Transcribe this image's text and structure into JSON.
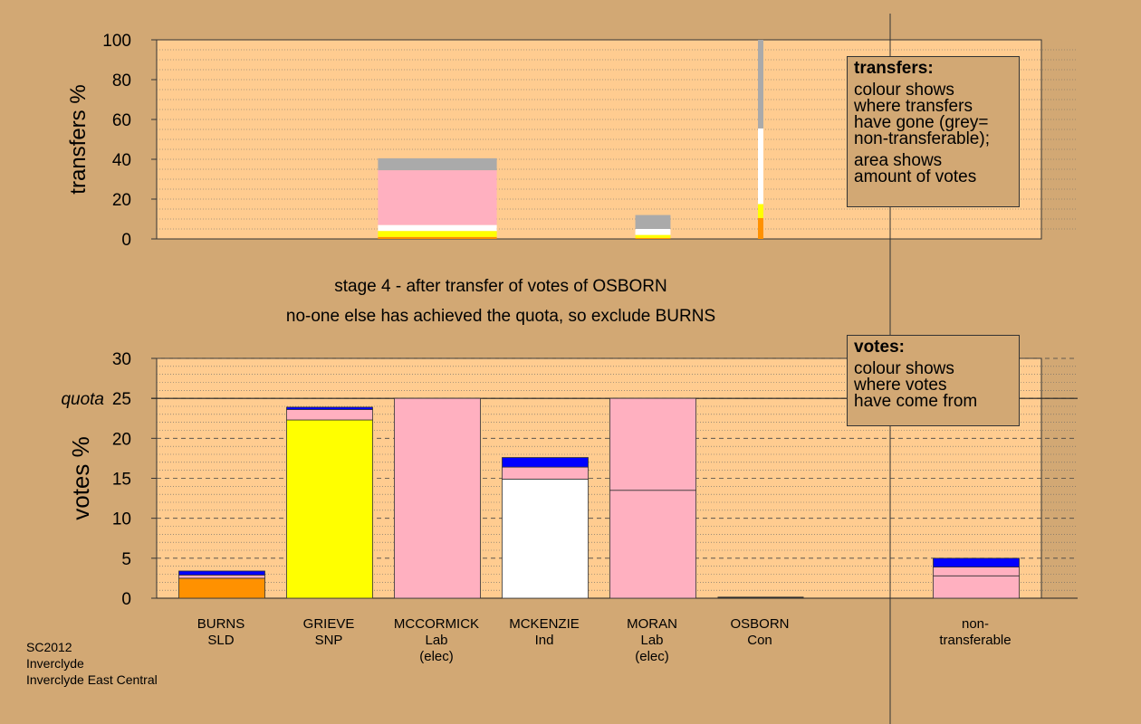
{
  "colors": {
    "background": "#D2A874",
    "plot_bg": "#FFCC90",
    "SLD": "#FF9100",
    "SNP": "#FFFF00",
    "Lab": "#FFB0C0",
    "Ind": "#FFFFFF",
    "Con": "#0000FF",
    "nontransferable": "#AAAAAA"
  },
  "stage_text": {
    "line1": "stage 4 - after transfer of votes of OSBORN",
    "line2": "no-one else has achieved the quota, so exclude BURNS"
  },
  "legend_transfers": {
    "title": "transfers:",
    "lines1": [
      "colour shows",
      "where transfers",
      "have gone (grey=",
      "non-transferable);"
    ],
    "lines2": [
      "area shows",
      "amount of votes"
    ]
  },
  "legend_votes": {
    "title": "votes:",
    "lines": [
      "colour shows",
      "where votes",
      "have come from"
    ]
  },
  "footer": {
    "line1": "SC2012",
    "line2": "Inverclyde",
    "line3": "Inverclyde East Central"
  },
  "candidates": [
    {
      "name": "BURNS",
      "party": "SLD",
      "note": ""
    },
    {
      "name": "GRIEVE",
      "party": "SNP",
      "note": ""
    },
    {
      "name": "MCCORMICK",
      "party": "Lab",
      "note": "(elec)"
    },
    {
      "name": "MCKENZIE",
      "party": "Ind",
      "note": ""
    },
    {
      "name": "MORAN",
      "party": "Lab",
      "note": "(elec)"
    },
    {
      "name": "OSBORN",
      "party": "Con",
      "note": ""
    },
    {
      "name": "non-",
      "party": "transferable",
      "note": ""
    }
  ],
  "chart_data": [
    {
      "type": "bar",
      "ylabel": "transfers %",
      "ylim": [
        0,
        100
      ],
      "yticks": [
        0,
        20,
        40,
        60,
        80,
        100
      ],
      "bars": [
        {
          "candidate": "MCCORMICK",
          "width_pct": 40.5,
          "segments": [
            {
              "source": "SLD",
              "value": 1
            },
            {
              "source": "SNP",
              "value": 3
            },
            {
              "source": "Ind",
              "value": 3
            },
            {
              "source": "Lab",
              "value": 27.5
            },
            {
              "source": "nontransferable",
              "value": 6
            }
          ]
        },
        {
          "candidate": "MORAN",
          "width_pct": 12,
          "segments": [
            {
              "source": "SLD",
              "value": 0.5
            },
            {
              "source": "SNP",
              "value": 1.5
            },
            {
              "source": "Ind",
              "value": 3
            },
            {
              "source": "nontransferable",
              "value": 7
            }
          ]
        },
        {
          "candidate": "OSBORN",
          "width_pct": 1.2,
          "segments": [
            {
              "source": "SLD",
              "value": 10.5
            },
            {
              "source": "SNP",
              "value": 7
            },
            {
              "source": "Ind",
              "value": 38
            },
            {
              "source": "nontransferable",
              "value": 44.5
            }
          ]
        }
      ]
    },
    {
      "type": "bar",
      "ylabel": "votes %",
      "ylim": [
        0,
        30
      ],
      "yticks": [
        0,
        5,
        10,
        15,
        20,
        25,
        30
      ],
      "quota": 25,
      "quota_label": "quota",
      "categories": [
        "BURNS",
        "GRIEVE",
        "MCCORMICK",
        "MCKENZIE",
        "MORAN",
        "OSBORN",
        "non-transferable"
      ],
      "stacks": [
        [
          {
            "source": "SLD",
            "value": 2.5
          },
          {
            "source": "Lab",
            "value": 0.4
          },
          {
            "source": "Con",
            "value": 0.5
          }
        ],
        [
          {
            "source": "SNP",
            "value": 22.3
          },
          {
            "source": "Lab",
            "value": 1.3
          },
          {
            "source": "Con",
            "value": 0.3
          }
        ],
        [
          {
            "source": "Lab",
            "value": 25
          }
        ],
        [
          {
            "source": "Ind",
            "value": 14.9
          },
          {
            "source": "Lab",
            "value": 1.5
          },
          {
            "source": "Con",
            "value": 1.2
          }
        ],
        [
          {
            "source": "Lab",
            "value": 13.5
          },
          {
            "source": "Lab",
            "value": 11.5
          }
        ],
        [
          {
            "source": "Con",
            "value": 0
          }
        ],
        [
          {
            "source": "Lab",
            "value": 2.8
          },
          {
            "source": "Lab",
            "value": 1.1
          },
          {
            "source": "Con",
            "value": 1.1
          }
        ]
      ]
    }
  ]
}
